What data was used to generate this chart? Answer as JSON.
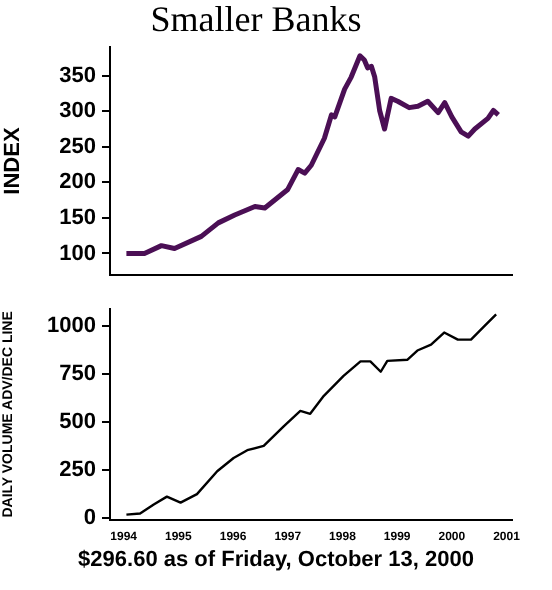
{
  "chart_data": [
    {
      "type": "line",
      "title": "Smaller Banks",
      "ylabel": "INDEX",
      "color": "#4b0f55",
      "x": [
        1994.05,
        1994.38,
        1994.69,
        1994.93,
        1995.42,
        1995.73,
        1996.03,
        1996.4,
        1996.58,
        1997.0,
        1997.19,
        1997.31,
        1997.43,
        1997.67,
        1997.8,
        1997.86,
        1998.04,
        1998.16,
        1998.32,
        1998.4,
        1998.46,
        1998.53,
        1998.59,
        1998.68,
        1998.77,
        1998.89,
        1999.01,
        1999.22,
        1999.38,
        1999.56,
        1999.75,
        1999.87,
        2000.0,
        2000.17,
        2000.3,
        2000.42,
        2000.66,
        2000.76,
        2000.85
      ],
      "values": [
        100,
        100,
        111,
        107,
        124,
        143,
        154,
        166,
        164,
        190,
        218,
        213,
        224,
        262,
        295,
        292,
        331,
        348,
        378,
        372,
        361,
        363,
        348,
        301,
        275,
        318,
        314,
        305,
        307,
        314,
        298,
        312,
        292,
        271,
        265,
        275,
        290,
        301,
        295
      ],
      "xlim": [
        1993.75,
        2001.1
      ],
      "ylim": [
        70,
        390
      ],
      "yticks": [
        100,
        150,
        200,
        250,
        300,
        350
      ],
      "tick_labels": "y"
    },
    {
      "type": "line",
      "ylabel": "DAILY VOLUME ADV/DEC LINE",
      "color": "#000000",
      "x": [
        1994.05,
        1994.3,
        1994.55,
        1994.79,
        1995.04,
        1995.34,
        1995.71,
        1996.01,
        1996.26,
        1996.56,
        1996.93,
        1997.23,
        1997.41,
        1997.66,
        1998.02,
        1998.33,
        1998.51,
        1998.7,
        1998.82,
        1999.19,
        1999.37,
        1999.62,
        1999.86,
        2000.11,
        2000.35,
        2000.59,
        2000.81
      ],
      "values": [
        16,
        22,
        69,
        110,
        79,
        123,
        243,
        312,
        353,
        375,
        479,
        558,
        543,
        637,
        741,
        817,
        817,
        763,
        820,
        826,
        874,
        905,
        968,
        931,
        931,
        1000,
        1063
      ],
      "xlim": [
        1993.75,
        2001.1
      ],
      "xticks": [
        1994,
        1995,
        1996,
        1997,
        1998,
        1999,
        2000,
        2001
      ],
      "ylim": [
        -10,
        1090
      ],
      "yticks": [
        0,
        250,
        500,
        750,
        1000
      ],
      "annotations": [
        "$296.60 as of Friday, October 13, 2000"
      ]
    }
  ]
}
